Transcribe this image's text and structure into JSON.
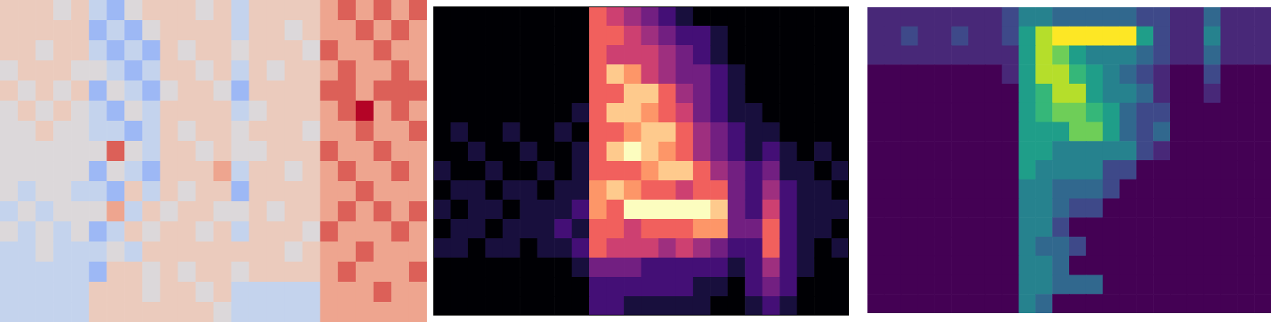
{
  "chart_data": [
    {
      "type": "heatmap",
      "color": "coolwarm",
      "tick_labels": false,
      "zlim": [
        0,
        8
      ],
      "z": [
        [
          5,
          5,
          5,
          4,
          5,
          3,
          2,
          4,
          5,
          5,
          5,
          4,
          5,
          3,
          5,
          5,
          5,
          5,
          6,
          7,
          6,
          7,
          6,
          7
        ],
        [
          5,
          5,
          5,
          5,
          5,
          2,
          3,
          2,
          4,
          5,
          5,
          5,
          5,
          3,
          5,
          5,
          4,
          5,
          6,
          6,
          7,
          6,
          7,
          6
        ],
        [
          5,
          5,
          4,
          5,
          5,
          3,
          2,
          3,
          2,
          5,
          4,
          5,
          5,
          4,
          5,
          5,
          5,
          4,
          7,
          6,
          6,
          7,
          6,
          6
        ],
        [
          4,
          5,
          5,
          5,
          4,
          4,
          3,
          2,
          3,
          5,
          5,
          4,
          5,
          3,
          5,
          4,
          5,
          5,
          6,
          7,
          6,
          6,
          7,
          6
        ],
        [
          5,
          4,
          5,
          4,
          5,
          2,
          4,
          3,
          2,
          4,
          5,
          5,
          4,
          2,
          5,
          5,
          5,
          5,
          7,
          7,
          6,
          7,
          7,
          7
        ],
        [
          4,
          5,
          4,
          5,
          4,
          3,
          2,
          4,
          3,
          5,
          5,
          5,
          5,
          3,
          4,
          5,
          5,
          5,
          6,
          7,
          8,
          6,
          7,
          6
        ],
        [
          4,
          4,
          5,
          4,
          4,
          3,
          3,
          2,
          3,
          5,
          4,
          5,
          5,
          4,
          5,
          5,
          5,
          4,
          6,
          6,
          7,
          6,
          6,
          7
        ],
        [
          4,
          4,
          4,
          4,
          4,
          4,
          7,
          4,
          3,
          5,
          5,
          4,
          5,
          4,
          4,
          5,
          5,
          5,
          7,
          6,
          6,
          7,
          6,
          6
        ],
        [
          4,
          4,
          4,
          4,
          4,
          2,
          4,
          3,
          2,
          5,
          5,
          5,
          6,
          3,
          5,
          5,
          4,
          5,
          6,
          7,
          6,
          6,
          7,
          6
        ],
        [
          4,
          3,
          4,
          4,
          3,
          3,
          2,
          5,
          3,
          5,
          4,
          5,
          5,
          2,
          5,
          5,
          5,
          5,
          6,
          6,
          7,
          6,
          6,
          6
        ],
        [
          3,
          4,
          3,
          4,
          4,
          4,
          6,
          3,
          5,
          4,
          5,
          5,
          4,
          4,
          5,
          4,
          5,
          5,
          6,
          7,
          6,
          7,
          6,
          7
        ],
        [
          4,
          3,
          4,
          3,
          4,
          2,
          3,
          5,
          4,
          5,
          5,
          4,
          5,
          3,
          5,
          5,
          5,
          4,
          7,
          6,
          6,
          6,
          7,
          6
        ],
        [
          3,
          3,
          4,
          3,
          3,
          3,
          4,
          3,
          5,
          5,
          5,
          5,
          5,
          5,
          5,
          5,
          4,
          5,
          6,
          6,
          7,
          6,
          6,
          6
        ],
        [
          3,
          3,
          3,
          3,
          3,
          2,
          5,
          5,
          4,
          5,
          4,
          5,
          5,
          4,
          5,
          5,
          5,
          5,
          6,
          7,
          6,
          6,
          6,
          7
        ],
        [
          3,
          3,
          3,
          3,
          3,
          5,
          5,
          5,
          4,
          5,
          5,
          4,
          5,
          3,
          3,
          3,
          3,
          3,
          6,
          6,
          6,
          7,
          6,
          6
        ],
        [
          3,
          3,
          3,
          3,
          3,
          5,
          5,
          5,
          5,
          5,
          5,
          5,
          4,
          3,
          3,
          3,
          3,
          3,
          6,
          6,
          6,
          6,
          6,
          6
        ]
      ]
    },
    {
      "type": "heatmap",
      "color": "magma",
      "tick_labels": false,
      "zlim": [
        0,
        9
      ],
      "z": [
        [
          0,
          0,
          0,
          0,
          0,
          0,
          0,
          0,
          0,
          6,
          5,
          4,
          3,
          2,
          1,
          0,
          0,
          0,
          0,
          0,
          0,
          0,
          0,
          0
        ],
        [
          0,
          0,
          0,
          0,
          0,
          0,
          0,
          0,
          0,
          6,
          6,
          5,
          4,
          3,
          2,
          2,
          1,
          0,
          0,
          0,
          0,
          0,
          0,
          0
        ],
        [
          0,
          0,
          0,
          0,
          0,
          0,
          0,
          0,
          0,
          6,
          5,
          5,
          5,
          4,
          3,
          2,
          1,
          0,
          0,
          0,
          0,
          0,
          0,
          0
        ],
        [
          0,
          0,
          0,
          0,
          0,
          0,
          0,
          0,
          0,
          6,
          8,
          7,
          5,
          4,
          3,
          3,
          2,
          1,
          0,
          0,
          0,
          0,
          0,
          0
        ],
        [
          0,
          0,
          0,
          0,
          0,
          0,
          0,
          0,
          0,
          6,
          6,
          8,
          8,
          6,
          4,
          3,
          2,
          1,
          0,
          0,
          0,
          0,
          0,
          0
        ],
        [
          0,
          0,
          0,
          0,
          0,
          0,
          0,
          0,
          1,
          6,
          8,
          8,
          7,
          6,
          5,
          3,
          2,
          1,
          1,
          0,
          0,
          0,
          0,
          0
        ],
        [
          0,
          1,
          0,
          0,
          1,
          0,
          0,
          1,
          0,
          6,
          6,
          7,
          8,
          8,
          6,
          4,
          3,
          2,
          1,
          1,
          0,
          0,
          0,
          0
        ],
        [
          0,
          0,
          1,
          0,
          0,
          1,
          0,
          0,
          1,
          6,
          8,
          9,
          8,
          7,
          6,
          4,
          3,
          2,
          1,
          2,
          1,
          0,
          1,
          0
        ],
        [
          1,
          0,
          0,
          1,
          0,
          0,
          1,
          0,
          1,
          6,
          6,
          6,
          7,
          8,
          8,
          6,
          4,
          3,
          2,
          3,
          1,
          1,
          0,
          1
        ],
        [
          0,
          1,
          1,
          0,
          1,
          1,
          0,
          1,
          1,
          7,
          8,
          7,
          6,
          6,
          5,
          6,
          6,
          3,
          2,
          4,
          2,
          1,
          1,
          0
        ],
        [
          1,
          0,
          1,
          1,
          0,
          1,
          1,
          1,
          2,
          7,
          6,
          9,
          9,
          9,
          9,
          9,
          8,
          3,
          2,
          5,
          2,
          1,
          1,
          1
        ],
        [
          0,
          1,
          1,
          0,
          1,
          1,
          1,
          2,
          1,
          6,
          6,
          5,
          6,
          6,
          6,
          7,
          7,
          3,
          3,
          6,
          2,
          1,
          1,
          0
        ],
        [
          1,
          1,
          0,
          1,
          1,
          0,
          1,
          1,
          2,
          6,
          5,
          5,
          5,
          4,
          5,
          4,
          3,
          2,
          2,
          6,
          2,
          1,
          0,
          1
        ],
        [
          0,
          0,
          0,
          0,
          0,
          0,
          0,
          0,
          1,
          3,
          3,
          3,
          2,
          2,
          2,
          2,
          2,
          1,
          2,
          4,
          2,
          1,
          0,
          0
        ],
        [
          0,
          0,
          0,
          0,
          0,
          0,
          0,
          0,
          0,
          2,
          2,
          2,
          2,
          2,
          2,
          1,
          1,
          0,
          2,
          3,
          2,
          0,
          0,
          0
        ],
        [
          0,
          0,
          0,
          0,
          0,
          0,
          0,
          0,
          0,
          2,
          2,
          1,
          1,
          1,
          1,
          1,
          0,
          0,
          1,
          2,
          1,
          0,
          0,
          0
        ]
      ]
    },
    {
      "type": "heatmap",
      "color": "viridis",
      "tick_labels": false,
      "zlim": [
        0,
        9
      ],
      "z": [
        [
          1,
          1,
          1,
          1,
          1,
          1,
          1,
          1,
          2,
          4,
          4,
          3,
          3,
          3,
          3,
          3,
          2,
          2,
          1,
          1,
          3,
          1,
          1,
          1
        ],
        [
          1,
          1,
          2,
          1,
          1,
          2,
          1,
          1,
          2,
          5,
          8,
          9,
          9,
          9,
          9,
          9,
          5,
          2,
          1,
          1,
          4,
          1,
          1,
          1
        ],
        [
          1,
          1,
          1,
          1,
          1,
          1,
          1,
          1,
          1,
          5,
          8,
          7,
          5,
          4,
          4,
          4,
          3,
          2,
          1,
          1,
          3,
          1,
          1,
          1
        ],
        [
          0,
          0,
          0,
          0,
          0,
          0,
          0,
          0,
          1,
          5,
          8,
          8,
          6,
          5,
          4,
          3,
          2,
          1,
          0,
          0,
          2,
          0,
          0,
          0
        ],
        [
          0,
          0,
          0,
          0,
          0,
          0,
          0,
          0,
          0,
          5,
          6,
          8,
          8,
          5,
          4,
          4,
          3,
          1,
          0,
          0,
          1,
          0,
          0,
          0
        ],
        [
          0,
          0,
          0,
          0,
          0,
          0,
          0,
          0,
          0,
          5,
          6,
          7,
          7,
          6,
          5,
          3,
          2,
          2,
          0,
          0,
          0,
          0,
          0,
          0
        ],
        [
          0,
          0,
          0,
          0,
          0,
          0,
          0,
          0,
          0,
          5,
          5,
          5,
          7,
          7,
          5,
          3,
          2,
          3,
          0,
          0,
          0,
          0,
          0,
          0
        ],
        [
          0,
          0,
          0,
          0,
          0,
          0,
          0,
          0,
          0,
          5,
          5,
          4,
          4,
          4,
          4,
          4,
          2,
          1,
          0,
          0,
          0,
          0,
          0,
          0
        ],
        [
          0,
          0,
          0,
          0,
          0,
          0,
          0,
          0,
          0,
          5,
          4,
          4,
          4,
          4,
          2,
          2,
          0,
          0,
          0,
          0,
          0,
          0,
          0,
          0
        ],
        [
          0,
          0,
          0,
          0,
          0,
          0,
          0,
          0,
          0,
          4,
          4,
          3,
          3,
          3,
          2,
          0,
          0,
          0,
          0,
          0,
          0,
          0,
          0,
          0
        ],
        [
          0,
          0,
          0,
          0,
          0,
          0,
          0,
          0,
          0,
          4,
          4,
          3,
          2,
          2,
          0,
          0,
          0,
          0,
          0,
          0,
          0,
          0,
          0,
          0
        ],
        [
          0,
          0,
          0,
          0,
          0,
          0,
          0,
          0,
          0,
          4,
          4,
          2,
          0,
          0,
          0,
          0,
          0,
          0,
          0,
          0,
          0,
          0,
          0,
          0
        ],
        [
          0,
          0,
          0,
          0,
          0,
          0,
          0,
          0,
          0,
          4,
          3,
          3,
          2,
          0,
          0,
          0,
          0,
          0,
          0,
          0,
          0,
          0,
          0,
          0
        ],
        [
          0,
          0,
          0,
          0,
          0,
          0,
          0,
          0,
          0,
          4,
          4,
          3,
          0,
          0,
          0,
          0,
          0,
          0,
          0,
          0,
          0,
          0,
          0,
          0
        ],
        [
          0,
          0,
          0,
          0,
          0,
          0,
          0,
          0,
          0,
          4,
          4,
          3,
          3,
          3,
          0,
          0,
          0,
          0,
          0,
          0,
          0,
          0,
          0,
          0
        ],
        [
          0,
          0,
          0,
          0,
          0,
          0,
          0,
          0,
          0,
          4,
          3,
          0,
          0,
          0,
          0,
          0,
          0,
          0,
          0,
          0,
          0,
          0,
          0,
          0
        ]
      ]
    }
  ]
}
